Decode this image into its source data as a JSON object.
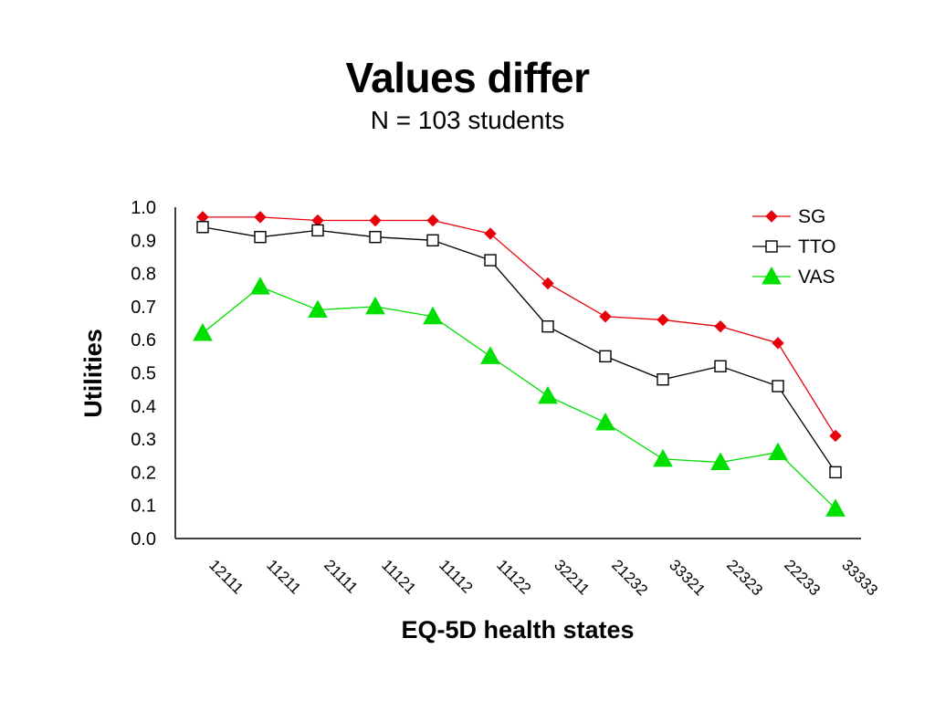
{
  "title": "Values differ",
  "subtitle": "N = 103 students",
  "chart_data": {
    "type": "line",
    "xlabel": "EQ-5D health states",
    "ylabel": "Utilities",
    "ylim": [
      0.0,
      1.0
    ],
    "yticks": [
      "0.0",
      "0.1",
      "0.2",
      "0.3",
      "0.4",
      "0.5",
      "0.6",
      "0.7",
      "0.8",
      "0.9",
      "1.0"
    ],
    "categories": [
      "12111",
      "11211",
      "21111",
      "11121",
      "11112",
      "11122",
      "32211",
      "21232",
      "33321",
      "22323",
      "22233",
      "33333"
    ],
    "legend": "top-right",
    "grid": false,
    "series": [
      {
        "name": "SG",
        "marker": "diamond",
        "color": "#e8000b",
        "fill": "#e8000b",
        "values": [
          0.97,
          0.97,
          0.96,
          0.96,
          0.96,
          0.92,
          0.77,
          0.67,
          0.66,
          0.64,
          0.59,
          0.31
        ]
      },
      {
        "name": "TTO",
        "marker": "square",
        "color": "#000000",
        "fill": "#ffffff",
        "values": [
          0.94,
          0.91,
          0.93,
          0.91,
          0.9,
          0.84,
          0.64,
          0.55,
          0.48,
          0.52,
          0.46,
          0.2
        ]
      },
      {
        "name": "VAS",
        "marker": "triangle",
        "color": "#00e000",
        "fill": "#00e000",
        "values": [
          0.62,
          0.76,
          0.69,
          0.7,
          0.67,
          0.55,
          0.43,
          0.35,
          0.24,
          0.23,
          0.26,
          0.09
        ]
      }
    ]
  }
}
